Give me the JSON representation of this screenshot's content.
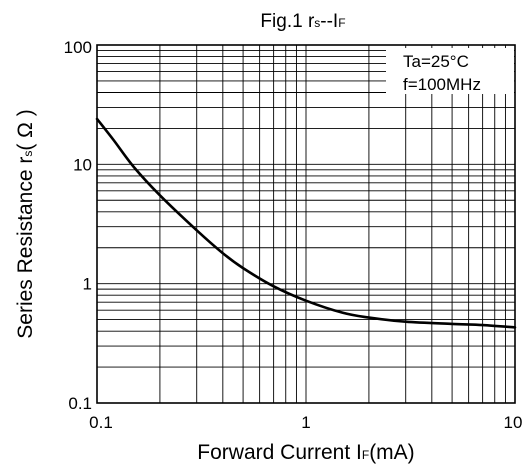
{
  "chart_data": {
    "type": "line",
    "title": {
      "main": "Fig.1 r",
      "sub1": "s",
      "dash": "--I",
      "sub2": "F"
    },
    "xlabel": {
      "main": "Forward Current   I",
      "sub": "F",
      "unit": "(mA)"
    },
    "ylabel": {
      "main": "Series Resistance r",
      "sub": "s",
      "unit": "( Ω )"
    },
    "x_scale": "log",
    "y_scale": "log",
    "xlim": [
      0.1,
      10
    ],
    "ylim": [
      0.1,
      100
    ],
    "x_ticks": [
      "0.1",
      "1",
      "10"
    ],
    "y_ticks": [
      "100",
      "10",
      "1",
      "0.1"
    ],
    "grid": true,
    "legend_position": "top-right",
    "annotations": [
      "Ta=25°C",
      "f=100MHz"
    ],
    "series": [
      {
        "x": [
          0.1,
          0.12,
          0.15,
          0.2,
          0.3,
          0.4,
          0.5,
          0.7,
          1.0,
          1.5,
          2.0,
          3.0,
          5.0,
          7.0,
          10.0
        ],
        "y": [
          24,
          16,
          9.5,
          5.5,
          2.8,
          1.8,
          1.35,
          0.95,
          0.72,
          0.57,
          0.52,
          0.48,
          0.46,
          0.45,
          0.43
        ]
      }
    ]
  }
}
